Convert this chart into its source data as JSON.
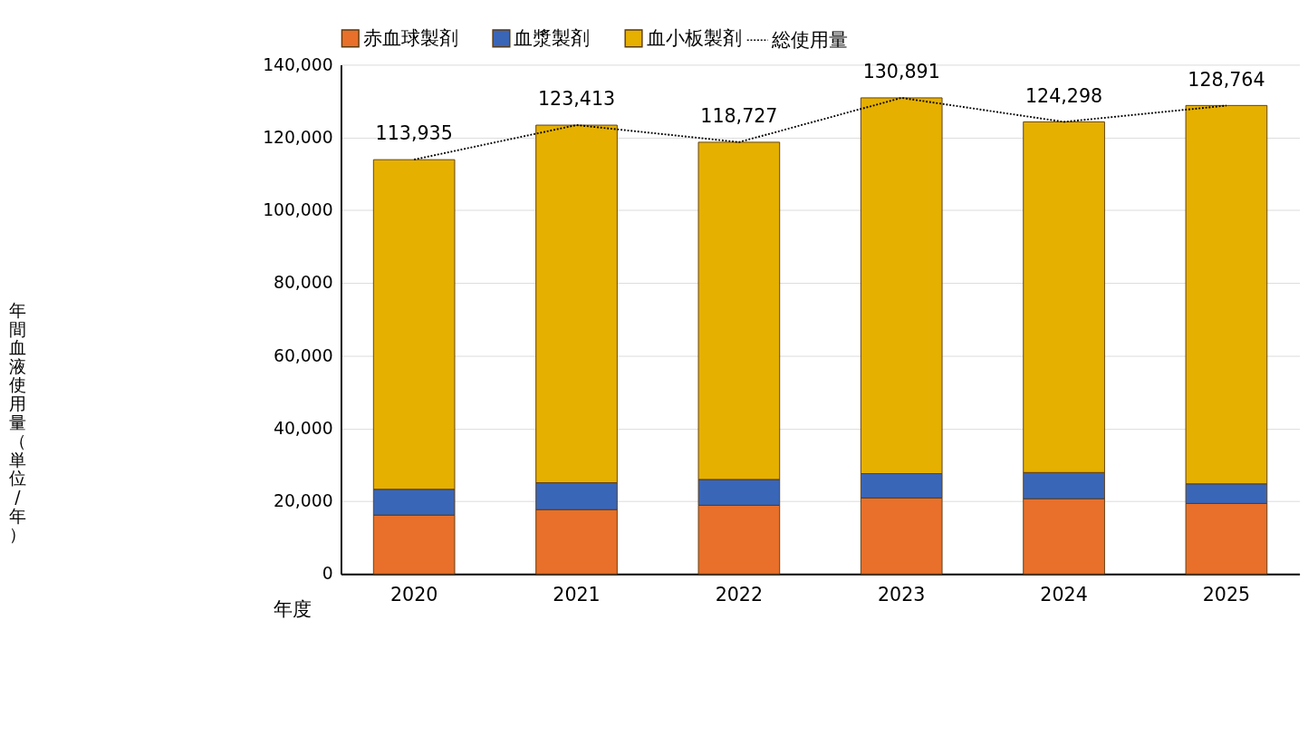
{
  "chart_data": {
    "type": "bar",
    "stacked": true,
    "xlabel": "年度",
    "ylabel": "年間血液使用量（単位/年）",
    "categories": [
      "2020",
      "2021",
      "2022",
      "2023",
      "2024",
      "2025"
    ],
    "series": [
      {
        "name": "赤血球製剤",
        "color": "#e8702a",
        "values": [
          16200,
          17700,
          18900,
          20900,
          20700,
          19400
        ]
      },
      {
        "name": "血漿製剤",
        "color": "#3a66b8",
        "values": [
          7100,
          7400,
          7100,
          6700,
          7200,
          5400
        ]
      },
      {
        "name": "血小板製剤",
        "color": "#e6b000",
        "values": [
          90600,
          98300,
          92700,
          103300,
          96400,
          104000
        ]
      },
      {
        "name": "総使用量",
        "type": "line",
        "color": "#000000",
        "line_style": "dotted",
        "marker": "none",
        "values": [
          113935,
          123413,
          118727,
          130891,
          124298,
          128764
        ],
        "value_labels": [
          "113,935",
          "123,413",
          "118,727",
          "130,891",
          "124,298",
          "128,764"
        ]
      }
    ],
    "ylim": [
      0,
      140000
    ],
    "yticks": [
      0,
      {
        "value": 20000,
        "label": "20,000"
      },
      {
        "value": 40000,
        "label": "40,000"
      },
      {
        "value": 60000,
        "label": "60,000"
      },
      {
        "value": 80000,
        "label": "80,000"
      },
      {
        "value": 100000,
        "label": "100,000"
      },
      {
        "value": 120000,
        "label": "120,000"
      },
      {
        "value": 140000,
        "label": "140,000"
      }
    ],
    "grid": "y",
    "legend": "top"
  }
}
